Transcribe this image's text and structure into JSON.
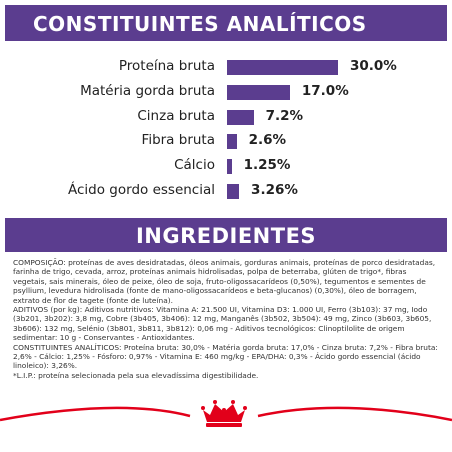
{
  "chart_data": {
    "type": "bar",
    "title": "CONSTITUINTES ANALÍTICOS",
    "orientation": "horizontal",
    "color": "#5b3d8f",
    "categories": [
      "Proteína bruta",
      "Matéria gorda bruta",
      "Cinza bruta",
      "Fibra bruta",
      "Cálcio",
      "Ácido gordo essencial"
    ],
    "values": [
      30.0,
      17.0,
      7.2,
      2.6,
      1.25,
      3.26
    ],
    "value_labels": [
      "30.0%",
      "17.0%",
      "7.2%",
      "2.6%",
      "1.25%",
      "3.26%"
    ]
  },
  "ingredients": {
    "title": "INGREDIENTES",
    "paragraphs": [
      "COMPOSIÇÃO: proteínas de aves desidratadas, óleos animais, gorduras animais, proteínas de porco desidratadas, farinha de trigo, cevada, arroz, proteínas animais hidrolisadas, polpa de beterraba, glúten de trigo*, fibras vegetais, sais minerais, óleo de peixe, óleo de soja, fruto-oligossacarídeos (0,50%), tegumentos e sementes de psyllium, levedura hidrolisada (fonte de mano-oligossacarídeos e beta-glucanos) (0,30%), óleo de borragem, extrato de flor de tagete (fonte de luteína).",
      "ADITIVOS (por kg): Aditivos nutritivos: Vitamina A: 21.500 UI, Vitamina D3: 1.000 UI, Ferro (3b103): 37 mg, Iodo (3b201, 3b202): 3,8 mg, Cobre (3b405, 3b406): 12 mg, Manganês (3b502, 3b504): 49 mg, Zinco (3b603, 3b605, 3b606): 132 mg, Selénio (3b801, 3b811, 3b812): 0,06 mg - Aditivos tecnológicos: Clinoptilolite de origem sedimentar: 10 g - Conservantes - Antioxidantes.",
      "CONSTITUINTES ANALÍTICOS: Proteína bruta: 30,0% - Matéria gorda bruta: 17,0% - Cinza bruta: 7,2% - Fibra bruta: 2,6% - Cálcio: 1,25% - Fósforo: 0,97% - Vitamina E: 460 mg/kg - EPA/DHA: 0,3% - Ácido gordo essencial (ácido linoleico): 3,26%.",
      "*L.I.P.: proteína selecionada pela sua elevadíssima digestibilidade."
    ]
  }
}
